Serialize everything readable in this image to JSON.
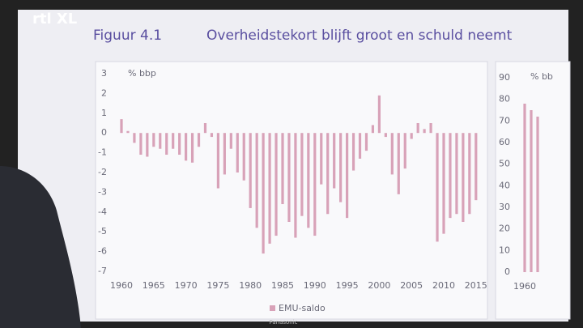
{
  "overlay": {
    "logo": "rtl XL",
    "brand": "Panasonic"
  },
  "chart_data": [
    {
      "type": "bar",
      "figure": "Figuur 4.1",
      "title": "Overheidstekort blijft groot en schuld neemt",
      "ylabel": "% bbp",
      "color": "#d8a2b8",
      "categories": [
        "1960",
        null,
        null,
        null,
        null,
        "1965",
        null,
        null,
        null,
        null,
        "1970",
        null,
        null,
        null,
        null,
        "1975",
        null,
        null,
        null,
        null,
        "1980",
        null,
        null,
        null,
        null,
        "1985",
        null,
        null,
        null,
        null,
        "1990",
        null,
        null,
        null,
        null,
        "1995",
        null,
        null,
        null,
        null,
        "2000",
        null,
        null,
        null,
        null,
        "2005",
        null,
        null,
        null,
        null,
        "2010",
        null,
        null,
        null,
        null,
        "2015"
      ],
      "series": [
        {
          "name": "EMU-saldo",
          "color": "#d8a2b8",
          "values": [
            0.7,
            0.1,
            -0.5,
            -1.1,
            -1.2,
            -0.7,
            -0.8,
            -1.1,
            -0.8,
            -1.1,
            -1.4,
            -1.5,
            -0.7,
            0.5,
            -0.2,
            -2.8,
            -2.1,
            -0.8,
            -2.0,
            -2.4,
            -3.8,
            -4.8,
            -6.1,
            -5.6,
            -5.2,
            -3.6,
            -4.5,
            -5.3,
            -4.2,
            -4.8,
            -5.2,
            -2.6,
            -4.1,
            -2.8,
            -3.5,
            -4.3,
            -1.9,
            -1.3,
            -0.9,
            0.4,
            1.9,
            -0.2,
            -2.1,
            -3.1,
            -1.8,
            -0.3,
            0.5,
            0.2,
            0.5,
            -5.5,
            -5.1,
            -4.3,
            -4.1,
            -4.5,
            -4.1,
            -3.4
          ]
        }
      ],
      "ylim": [
        -7,
        3
      ],
      "yticks": [
        3,
        2,
        1,
        0,
        -1,
        -2,
        -3,
        -4,
        -5,
        -6,
        -7
      ]
    },
    {
      "type": "bar",
      "ylabel": "% bb",
      "color": "#d8a2b8",
      "categories": [
        "1960",
        null,
        null
      ],
      "series": [
        {
          "values": [
            78,
            75,
            72
          ]
        }
      ],
      "ylim": [
        0,
        90
      ],
      "yticks": [
        90,
        80,
        70,
        60,
        50,
        40,
        30,
        20,
        10,
        0
      ]
    }
  ]
}
